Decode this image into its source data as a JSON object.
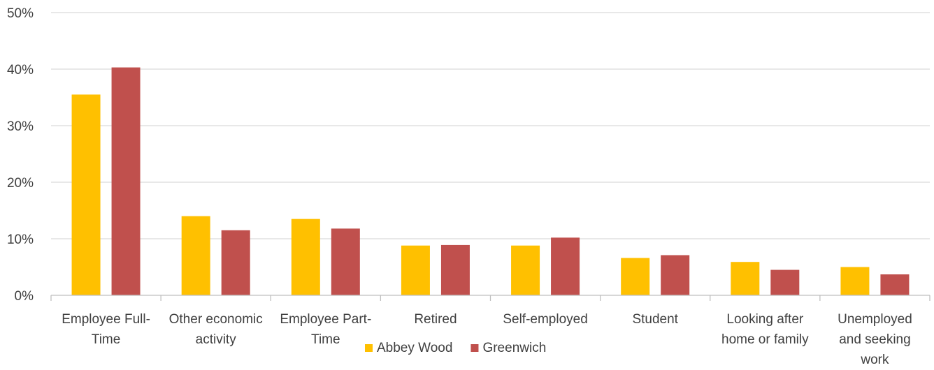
{
  "chart_data": {
    "type": "bar",
    "title": "",
    "xlabel": "",
    "ylabel": "",
    "ylim": [
      0,
      50
    ],
    "y_ticks": [
      "0%",
      "10%",
      "20%",
      "30%",
      "40%",
      "50%"
    ],
    "y_unit": "%",
    "grid": true,
    "legend_position": "bottom",
    "categories": [
      [
        "Employee Full-",
        "Time"
      ],
      [
        "Other economic",
        "activity"
      ],
      [
        "Employee Part-",
        "Time"
      ],
      [
        "Retired"
      ],
      [
        "Self-employed"
      ],
      [
        "Student"
      ],
      [
        "Looking after",
        "home or family"
      ],
      [
        "Unemployed",
        "and seeking",
        "work"
      ]
    ],
    "series": [
      {
        "name": "Abbey Wood",
        "color": "#FFC000",
        "values": [
          35.5,
          14.0,
          13.5,
          8.8,
          8.8,
          6.6,
          5.9,
          5.0
        ]
      },
      {
        "name": "Greenwich",
        "color": "#C0504D",
        "values": [
          40.3,
          11.5,
          11.8,
          8.9,
          10.2,
          7.1,
          4.5,
          3.7
        ]
      }
    ]
  }
}
